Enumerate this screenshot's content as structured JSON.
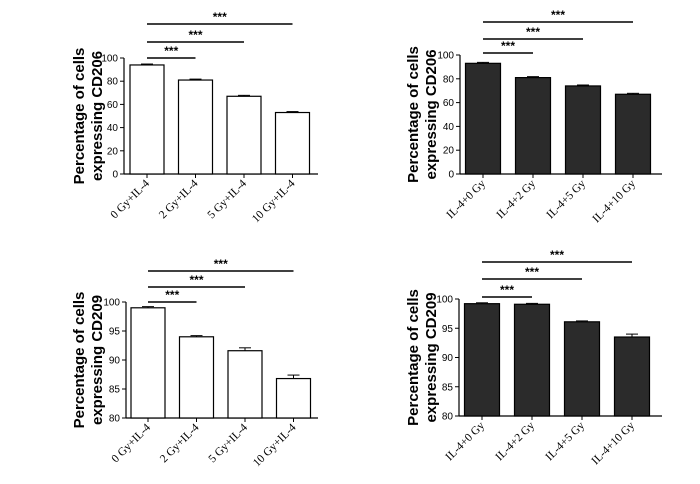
{
  "chart_data": [
    {
      "type": "bar",
      "ylabel_line1": "Percentage of cells",
      "ylabel_line2": "expressing CD206",
      "categories": [
        "0 Gy+IL-4",
        "2 Gy+IL-4",
        "5 Gy+IL-4",
        "10 Gy+IL-4"
      ],
      "values": [
        94,
        81,
        67,
        53
      ],
      "errors": [
        0.8,
        0.8,
        0.8,
        0.8
      ],
      "ylim": [
        0,
        100
      ],
      "yticks": [
        0,
        20,
        40,
        60,
        80,
        100
      ],
      "bar_color": "#ffffff",
      "significance": [
        {
          "from": 0,
          "to": 1,
          "label": "***"
        },
        {
          "from": 0,
          "to": 2,
          "label": "***"
        },
        {
          "from": 0,
          "to": 3,
          "label": "***"
        }
      ]
    },
    {
      "type": "bar",
      "ylabel_line1": "Percentage of cells",
      "ylabel_line2": "expressing CD206",
      "categories": [
        "IL-4+0 Gy",
        "IL-4+2 Gy",
        "IL-4+5 Gy",
        "IL-4+10 Gy"
      ],
      "values": [
        93,
        81,
        74,
        67
      ],
      "errors": [
        0.8,
        0.8,
        0.8,
        0.8
      ],
      "ylim": [
        0,
        100
      ],
      "yticks": [
        0,
        20,
        40,
        60,
        80,
        100
      ],
      "bar_color": "#2b2b2b",
      "significance": [
        {
          "from": 0,
          "to": 1,
          "label": "***"
        },
        {
          "from": 0,
          "to": 2,
          "label": "***"
        },
        {
          "from": 0,
          "to": 3,
          "label": "***"
        }
      ]
    },
    {
      "type": "bar",
      "ylabel_line1": "Percentage of cells",
      "ylabel_line2": "expressing CD209",
      "categories": [
        "0 Gy+IL-4",
        "2 Gy+IL-4",
        "5 Gy+IL-4",
        "10 Gy+IL-4"
      ],
      "values": [
        99,
        94,
        91.6,
        86.8
      ],
      "errors": [
        0.2,
        0.2,
        0.5,
        0.6
      ],
      "ylim": [
        80,
        100
      ],
      "yticks": [
        80,
        85,
        90,
        95,
        100
      ],
      "bar_color": "#ffffff",
      "significance": [
        {
          "from": 0,
          "to": 1,
          "label": "***"
        },
        {
          "from": 0,
          "to": 2,
          "label": "***"
        },
        {
          "from": 0,
          "to": 3,
          "label": "***"
        }
      ]
    },
    {
      "type": "bar",
      "ylabel_line1": "Percentage of cells",
      "ylabel_line2": "expressing CD209",
      "categories": [
        "IL-4+0 Gy",
        "IL-4+2 Gy",
        "IL-4+5 Gy",
        "IL-4+10 Gy"
      ],
      "values": [
        99.2,
        99.1,
        96.1,
        93.5
      ],
      "errors": [
        0.15,
        0.15,
        0.15,
        0.5
      ],
      "ylim": [
        80,
        100
      ],
      "yticks": [
        80,
        85,
        90,
        95,
        100
      ],
      "bar_color": "#2b2b2b",
      "significance": [
        {
          "from": 0,
          "to": 1,
          "label": "***"
        },
        {
          "from": 0,
          "to": 2,
          "label": "***"
        },
        {
          "from": 0,
          "to": 3,
          "label": "***"
        }
      ]
    }
  ]
}
